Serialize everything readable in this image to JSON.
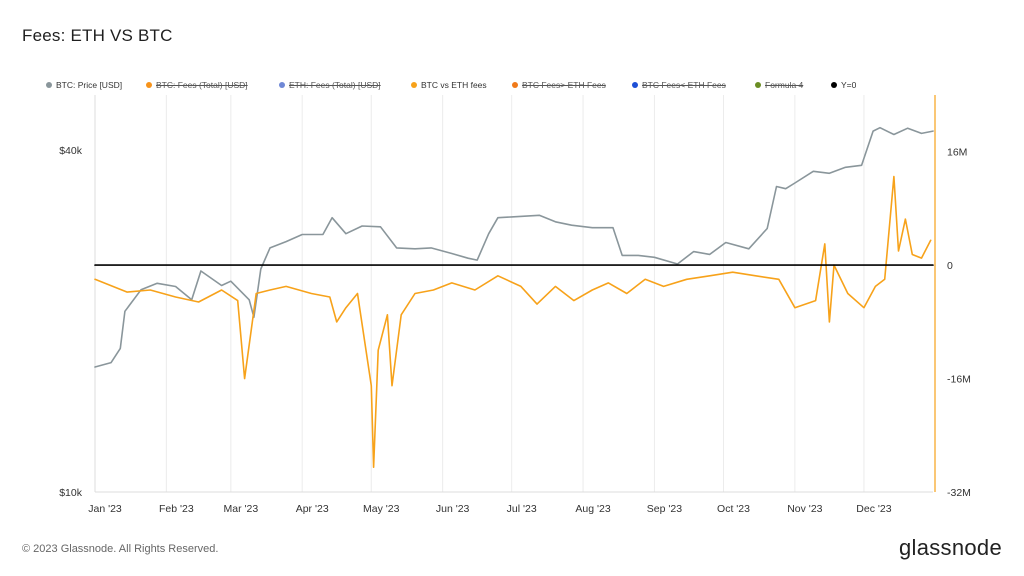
{
  "title": "Fees: ETH VS BTC",
  "legend": [
    {
      "label": "BTC: Price [USD]",
      "color": "#8a969b",
      "hidden": false
    },
    {
      "label": "BTC: Fees (Total) [USD]",
      "color": "#f7931a",
      "hidden": true
    },
    {
      "label": "ETH: Fees (Total) [USD]",
      "color": "#6f88d6",
      "hidden": true
    },
    {
      "label": "BTC vs ETH fees",
      "color": "#f7a21a",
      "hidden": false
    },
    {
      "label": "BTC Fees> ETH Fees",
      "color": "#f07a1a",
      "hidden": true
    },
    {
      "label": "BTC Fees< ETH Fees",
      "color": "#1d4fd6",
      "hidden": true
    },
    {
      "label": "Formula 4",
      "color": "#6b8e23",
      "hidden": true
    },
    {
      "label": "Y=0",
      "color": "#000000",
      "hidden": false
    }
  ],
  "footer": "© 2023 Glassnode. All Rights Reserved.",
  "brand": "glassnode",
  "chart_data": {
    "type": "line",
    "x_tick_labels": [
      "Jan '23",
      "Feb '23",
      "Mar '23",
      "Apr '23",
      "May '23",
      "Jun '23",
      "Jul '23",
      "Aug '23",
      "Sep '23",
      "Oct '23",
      "Nov '23",
      "Dec '23"
    ],
    "left_axis": {
      "scale": "log",
      "range": [
        10000,
        50000
      ],
      "tick_labels": [
        "$10k",
        "$40k"
      ],
      "tick_values": [
        10000,
        40000
      ]
    },
    "right_axis": {
      "scale": "linear",
      "range": [
        -32000000,
        24000000
      ],
      "tick_labels": [
        "-32M",
        "-16M",
        "0",
        "16M"
      ],
      "tick_values": [
        -32000000,
        -16000000,
        0,
        16000000
      ]
    },
    "grid": "vertical",
    "series": [
      {
        "name": "BTC: Price [USD]",
        "axis": "left",
        "color": "#8a969b",
        "x": [
          "2023-01-01",
          "2023-01-08",
          "2023-01-12",
          "2023-01-14",
          "2023-01-21",
          "2023-01-28",
          "2023-02-05",
          "2023-02-12",
          "2023-02-16",
          "2023-02-25",
          "2023-03-01",
          "2023-03-09",
          "2023-03-11",
          "2023-03-14",
          "2023-03-18",
          "2023-03-25",
          "2023-04-01",
          "2023-04-10",
          "2023-04-14",
          "2023-04-20",
          "2023-04-27",
          "2023-05-05",
          "2023-05-12",
          "2023-05-20",
          "2023-05-27",
          "2023-06-05",
          "2023-06-12",
          "2023-06-16",
          "2023-06-21",
          "2023-06-25",
          "2023-07-01",
          "2023-07-13",
          "2023-07-20",
          "2023-07-27",
          "2023-08-05",
          "2023-08-14",
          "2023-08-18",
          "2023-08-25",
          "2023-09-01",
          "2023-09-11",
          "2023-09-18",
          "2023-09-25",
          "2023-10-02",
          "2023-10-12",
          "2023-10-20",
          "2023-10-24",
          "2023-10-28",
          "2023-11-01",
          "2023-11-09",
          "2023-11-16",
          "2023-11-23",
          "2023-11-30",
          "2023-12-05",
          "2023-12-08",
          "2023-12-14",
          "2023-12-20",
          "2023-12-26",
          "2023-12-31"
        ],
        "y": [
          16600,
          16900,
          17900,
          20800,
          22700,
          23300,
          23000,
          21800,
          24500,
          23100,
          23500,
          21800,
          20300,
          24700,
          26900,
          27600,
          28400,
          28400,
          30400,
          28500,
          29400,
          29300,
          26900,
          26800,
          26900,
          26300,
          25800,
          25600,
          28500,
          30400,
          30500,
          30700,
          29900,
          29500,
          29200,
          29200,
          26100,
          26100,
          25900,
          25200,
          26500,
          26200,
          27500,
          26800,
          29100,
          34500,
          34200,
          35000,
          36700,
          36400,
          37300,
          37600,
          43200,
          43800,
          42600,
          43700,
          42800,
          43200
        ]
      },
      {
        "name": "BTC vs ETH fees",
        "axis": "right",
        "color": "#f7a21a",
        "x": [
          "2023-01-01",
          "2023-01-15",
          "2023-01-25",
          "2023-02-05",
          "2023-02-15",
          "2023-02-25",
          "2023-03-04",
          "2023-03-07",
          "2023-03-12",
          "2023-03-18",
          "2023-03-25",
          "2023-04-05",
          "2023-04-13",
          "2023-04-16",
          "2023-04-20",
          "2023-04-25",
          "2023-05-01",
          "2023-05-02",
          "2023-05-04",
          "2023-05-08",
          "2023-05-10",
          "2023-05-14",
          "2023-05-20",
          "2023-05-28",
          "2023-06-05",
          "2023-06-15",
          "2023-06-25",
          "2023-07-05",
          "2023-07-12",
          "2023-07-20",
          "2023-07-28",
          "2023-08-05",
          "2023-08-12",
          "2023-08-20",
          "2023-08-28",
          "2023-09-05",
          "2023-09-15",
          "2023-09-25",
          "2023-10-05",
          "2023-10-15",
          "2023-10-25",
          "2023-11-01",
          "2023-11-10",
          "2023-11-14",
          "2023-11-16",
          "2023-11-18",
          "2023-11-24",
          "2023-12-01",
          "2023-12-06",
          "2023-12-10",
          "2023-12-14",
          "2023-12-16",
          "2023-12-19",
          "2023-12-22",
          "2023-12-26",
          "2023-12-30"
        ],
        "y": [
          -2000000,
          -3800000,
          -3500000,
          -4500000,
          -5200000,
          -3500000,
          -5000000,
          -16000000,
          -4000000,
          -3500000,
          -3000000,
          -4000000,
          -4500000,
          -8000000,
          -6000000,
          -4000000,
          -17000000,
          -28500000,
          -12000000,
          -7000000,
          -17000000,
          -7000000,
          -4000000,
          -3500000,
          -2500000,
          -3500000,
          -1500000,
          -3000000,
          -5500000,
          -3000000,
          -5000000,
          -3500000,
          -2500000,
          -4000000,
          -2000000,
          -3000000,
          -2000000,
          -1500000,
          -1000000,
          -1500000,
          -2000000,
          -6000000,
          -5000000,
          3000000,
          -8000000,
          0,
          -4000000,
          -6000000,
          -3000000,
          -2000000,
          12500000,
          2000000,
          6500000,
          1500000,
          1000000,
          3500000
        ]
      },
      {
        "name": "Y=0",
        "axis": "right",
        "color": "#000000",
        "x": [
          "2023-01-01",
          "2023-12-31"
        ],
        "y": [
          0,
          0
        ]
      }
    ]
  }
}
